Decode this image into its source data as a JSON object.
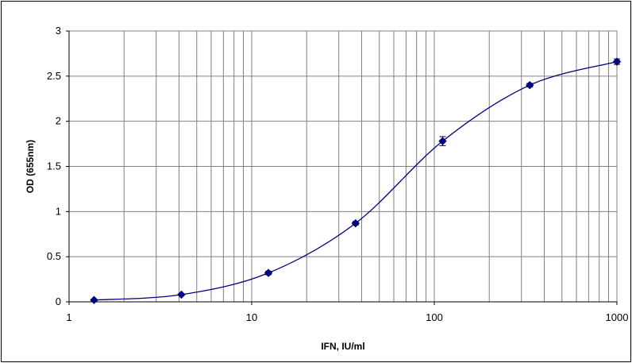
{
  "chart_data": {
    "type": "line",
    "title": "",
    "xlabel": "IFN, IU/ml",
    "ylabel": "OD (655nm)",
    "x_scale": "log",
    "xlim": [
      1,
      1000
    ],
    "ylim": [
      0,
      3
    ],
    "x_ticks": [
      "1",
      "10",
      "100",
      "1000"
    ],
    "y_ticks": [
      "0",
      "0.5",
      "1",
      "1.5",
      "2",
      "2.5",
      "3"
    ],
    "grid": true,
    "legend": "none",
    "series": [
      {
        "color": "#000080",
        "marker": "diamond",
        "x": [
          1.37,
          4.12,
          12.35,
          37.04,
          111.1,
          333.3,
          1000
        ],
        "y": [
          0.02,
          0.08,
          0.32,
          0.87,
          1.78,
          2.4,
          2.66
        ],
        "error": [
          0.01,
          0.01,
          0.02,
          0.02,
          0.05,
          0.02,
          0.03
        ]
      }
    ]
  }
}
